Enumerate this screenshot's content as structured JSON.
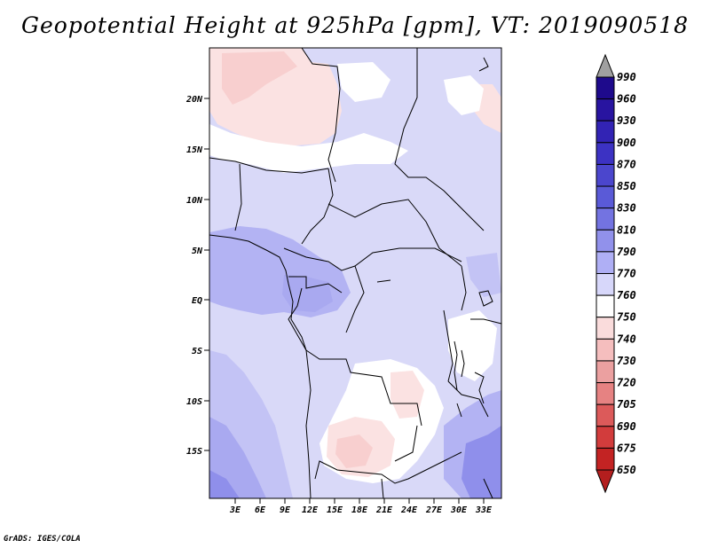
{
  "title": "Geopotential Height at 925hPa [gpm], VT: 2019090518",
  "footer": "GrADS: IGES/COLA",
  "lat_labels": [
    "20N",
    "15N",
    "10N",
    "5N",
    "EQ",
    "5S",
    "10S",
    "15S"
  ],
  "lon_labels": [
    "3E",
    "6E",
    "9E",
    "12E",
    "15E",
    "18E",
    "21E",
    "24E",
    "27E",
    "30E",
    "33E"
  ],
  "colorbar": {
    "levels": [
      "990",
      "960",
      "930",
      "900",
      "870",
      "850",
      "830",
      "810",
      "790",
      "770",
      "760",
      "750",
      "740",
      "730",
      "720",
      "705",
      "690",
      "675",
      "650"
    ],
    "colors": [
      "#1e0a8c",
      "#2814a0",
      "#3223b4",
      "#3c32c3",
      "#4b46cd",
      "#5a5ad7",
      "#7373e1",
      "#9191eb",
      "#afaff5",
      "#d7d7fa",
      "#ffffff",
      "#fadcdc",
      "#f5bebe",
      "#eba0a0",
      "#e68282",
      "#dc5a5a",
      "#d23c3c",
      "#c32323",
      "#a50f0f"
    ],
    "over_color": "#a0a0a0",
    "under_color": "#b41e1e"
  }
}
